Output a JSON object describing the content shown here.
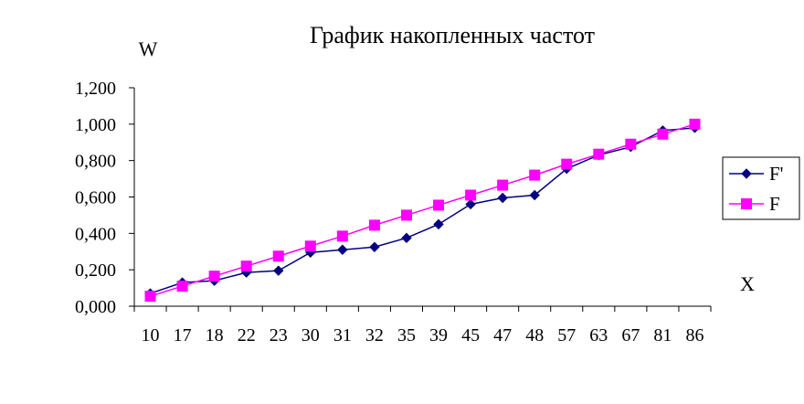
{
  "chart_data": {
    "type": "line",
    "title": "График накопленных частот",
    "ylabel": "W",
    "xlabel": "X",
    "categories": [
      "10",
      "17",
      "18",
      "22",
      "23",
      "30",
      "31",
      "32",
      "35",
      "39",
      "45",
      "47",
      "48",
      "57",
      "63",
      "67",
      "81",
      "86"
    ],
    "ylim": [
      0,
      1.2
    ],
    "ytick_values": [
      0,
      0.2,
      0.4,
      0.6,
      0.8,
      1.0,
      1.2
    ],
    "ytick_labels": [
      "0,000",
      "0,200",
      "0,400",
      "0,600",
      "0,800",
      "1,000",
      "1,200"
    ],
    "grid": false,
    "legend_position": "right",
    "series": [
      {
        "name": "F'",
        "color": "#000080",
        "marker": "diamond",
        "values": [
          0.07,
          0.13,
          0.14,
          0.185,
          0.195,
          0.295,
          0.31,
          0.325,
          0.375,
          0.45,
          0.56,
          0.595,
          0.61,
          0.755,
          0.83,
          0.875,
          0.965,
          0.98
        ]
      },
      {
        "name": "F",
        "color": "#ff00ff",
        "marker": "square",
        "values": [
          0.055,
          0.11,
          0.165,
          0.22,
          0.275,
          0.33,
          0.385,
          0.445,
          0.5,
          0.555,
          0.61,
          0.665,
          0.72,
          0.78,
          0.835,
          0.89,
          0.945,
          1.0
        ]
      }
    ]
  }
}
